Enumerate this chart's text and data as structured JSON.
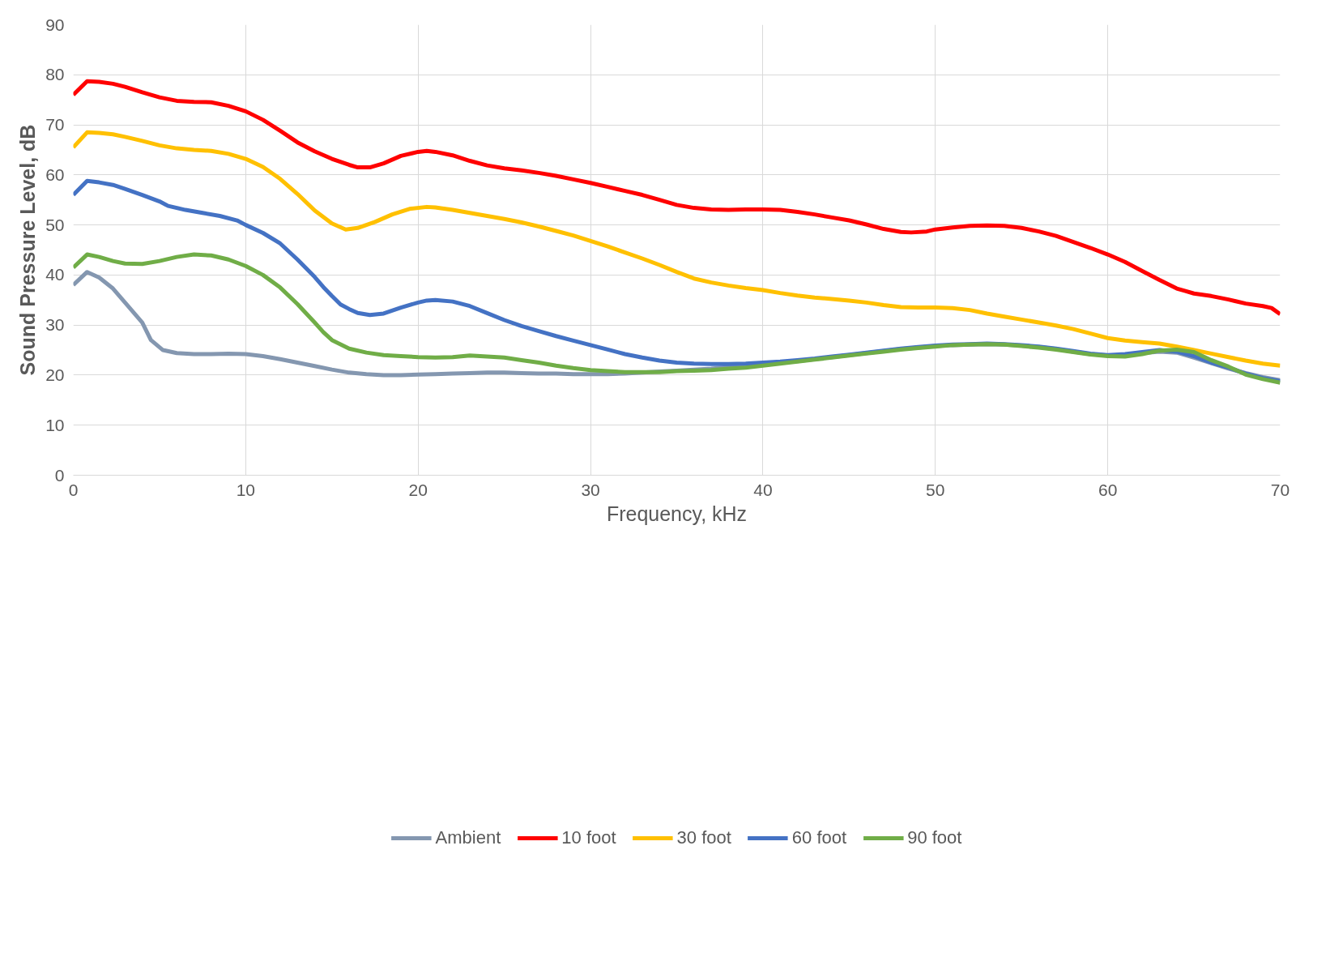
{
  "chart_data": {
    "type": "line",
    "xlabel": "Frequency, kHz",
    "ylabel": "Sound Pressure Level, dB",
    "xlim": [
      0,
      70
    ],
    "ylim": [
      0,
      90
    ],
    "xticks": [
      0,
      10,
      20,
      30,
      40,
      50,
      60,
      70
    ],
    "yticks": [
      0,
      10,
      20,
      30,
      40,
      50,
      60,
      70,
      80,
      90
    ],
    "grid": true,
    "legend": "bottom",
    "marker": "none",
    "line_style": "solid",
    "series": [
      {
        "name": "Ambient",
        "color": "#8497b0",
        "x": [
          0,
          0.8,
          1.5,
          2.3,
          3,
          4,
          4.5,
          5.2,
          6,
          7,
          8,
          9,
          10,
          11,
          12,
          13,
          14,
          15,
          16,
          17,
          18,
          19,
          20,
          21,
          22,
          23,
          24,
          25,
          26,
          27,
          28,
          29,
          30,
          31,
          32,
          33,
          34,
          35,
          36,
          37,
          38,
          39,
          40,
          41,
          42,
          43,
          44,
          45,
          46,
          47,
          48,
          49,
          50,
          51,
          52,
          53,
          54,
          55,
          56,
          57,
          58,
          59,
          60,
          61,
          62,
          63,
          64,
          65,
          66,
          67,
          68,
          69,
          70
        ],
        "values": [
          38,
          40.6,
          39.5,
          37.3,
          34.5,
          30.5,
          27,
          25,
          24.4,
          24.2,
          24.2,
          24.3,
          24.2,
          23.8,
          23.2,
          22.5,
          21.8,
          21.1,
          20.5,
          20.2,
          20,
          20,
          20.1,
          20.2,
          20.3,
          20.4,
          20.5,
          20.5,
          20.4,
          20.3,
          20.3,
          20.2,
          20.2,
          20.2,
          20.3,
          20.5,
          20.7,
          20.9,
          21.1,
          21.3,
          21.6,
          21.9,
          22.2,
          22.5,
          22.8,
          23.2,
          23.6,
          24,
          24.4,
          24.8,
          25.2,
          25.5,
          25.8,
          26,
          26.1,
          26.2,
          26.1,
          25.9,
          25.6,
          25.2,
          24.7,
          24.2,
          23.9,
          24,
          24.4,
          24.7,
          24.5,
          23.5,
          22.4,
          21.3,
          20.4,
          19.6,
          19
        ]
      },
      {
        "name": "10 foot",
        "color": "#ff0000",
        "x": [
          0,
          0.8,
          1.5,
          2.3,
          3,
          4,
          5,
          6,
          7,
          8,
          9,
          10,
          11,
          12,
          13,
          14,
          15,
          16,
          16.5,
          17.2,
          18,
          19,
          20,
          20.5,
          21,
          22,
          23,
          24,
          25,
          26,
          27,
          28,
          29,
          30,
          31,
          32,
          33,
          34,
          35,
          36,
          37,
          38,
          39,
          40,
          41,
          42,
          43,
          44,
          45,
          46,
          47,
          48,
          48.6,
          49.5,
          50,
          51,
          52,
          53,
          54,
          55,
          56,
          57,
          58,
          59,
          60,
          61,
          62,
          63,
          64,
          64.5,
          65,
          66,
          67,
          68,
          69,
          69.5,
          70
        ],
        "values": [
          76,
          78.7,
          78.6,
          78.2,
          77.6,
          76.5,
          75.5,
          74.8,
          74.6,
          74.5,
          73.8,
          72.7,
          71,
          68.8,
          66.5,
          64.7,
          63.2,
          62,
          61.5,
          61.5,
          62.3,
          63.8,
          64.6,
          64.8,
          64.6,
          63.9,
          62.8,
          61.9,
          61.3,
          60.9,
          60.4,
          59.8,
          59.1,
          58.4,
          57.6,
          56.8,
          56,
          55,
          54,
          53.4,
          53.1,
          53,
          53.1,
          53.1,
          53,
          52.6,
          52.1,
          51.5,
          50.9,
          50.1,
          49.2,
          48.6,
          48.5,
          48.7,
          49.1,
          49.5,
          49.8,
          49.9,
          49.8,
          49.4,
          48.7,
          47.8,
          46.6,
          45.4,
          44.1,
          42.6,
          40.8,
          39,
          37.3,
          36.8,
          36.3,
          35.8,
          35.1,
          34.3,
          33.8,
          33.4,
          32.2
        ]
      },
      {
        "name": "30 foot",
        "color": "#ffc000",
        "x": [
          0,
          0.8,
          1.5,
          2.3,
          3,
          4,
          5,
          6,
          7,
          8,
          9,
          10,
          11,
          12,
          13,
          14,
          15,
          15.8,
          16.5,
          17.5,
          18.5,
          19.5,
          20.5,
          21,
          22,
          23,
          24,
          25,
          26,
          27,
          28,
          29,
          30,
          31,
          32,
          33,
          34,
          35,
          36,
          37,
          38,
          39,
          40,
          41,
          42,
          43,
          44,
          45,
          46,
          47,
          48,
          49,
          50,
          51,
          52,
          53,
          54,
          55,
          56,
          57,
          58,
          59,
          60,
          61,
          62,
          63,
          64,
          65,
          66,
          67,
          68,
          69,
          70
        ],
        "values": [
          65.5,
          68.5,
          68.4,
          68.1,
          67.6,
          66.8,
          65.9,
          65.3,
          65,
          64.8,
          64.2,
          63.2,
          61.6,
          59.2,
          56.2,
          52.9,
          50.3,
          49.1,
          49.4,
          50.6,
          52.1,
          53.2,
          53.6,
          53.5,
          53,
          52.4,
          51.8,
          51.2,
          50.5,
          49.7,
          48.8,
          47.9,
          46.8,
          45.7,
          44.5,
          43.3,
          42,
          40.6,
          39.3,
          38.5,
          37.9,
          37.4,
          37,
          36.4,
          35.9,
          35.5,
          35.2,
          34.9,
          34.5,
          34,
          33.6,
          33.5,
          33.5,
          33.4,
          33,
          32.3,
          31.7,
          31.1,
          30.5,
          29.9,
          29.2,
          28.3,
          27.4,
          26.9,
          26.6,
          26.3,
          25.7,
          25,
          24.3,
          23.6,
          22.9,
          22.3,
          21.9
        ]
      },
      {
        "name": "60 foot",
        "color": "#4472c4",
        "x": [
          0,
          0.8,
          1.5,
          2.3,
          3,
          4,
          5,
          5.5,
          6.5,
          7.5,
          8.5,
          9.5,
          10,
          11,
          12,
          13,
          14,
          14.5,
          15,
          15.5,
          16,
          16.5,
          17.2,
          18,
          19,
          20,
          20.5,
          21,
          22,
          23,
          24,
          25,
          26,
          27,
          28,
          29,
          30,
          31,
          32,
          33,
          34,
          35,
          36,
          37,
          38,
          39,
          40,
          41,
          42,
          43,
          44,
          45,
          46,
          47,
          48,
          49,
          50,
          51,
          52,
          53,
          54,
          55,
          56,
          57,
          58,
          59,
          60,
          61,
          62,
          63,
          64,
          65,
          66,
          67,
          68,
          69,
          70
        ],
        "values": [
          56,
          58.8,
          58.5,
          58,
          57.2,
          56,
          54.7,
          53.8,
          53,
          52.4,
          51.8,
          50.9,
          50,
          48.4,
          46.3,
          43.1,
          39.6,
          37.6,
          35.8,
          34.1,
          33.2,
          32.4,
          32,
          32.3,
          33.5,
          34.5,
          34.9,
          35,
          34.7,
          33.8,
          32.4,
          31,
          29.8,
          28.8,
          27.8,
          26.9,
          26,
          25.1,
          24.2,
          23.5,
          22.9,
          22.5,
          22.3,
          22.2,
          22.2,
          22.3,
          22.5,
          22.7,
          23,
          23.3,
          23.7,
          24.1,
          24.5,
          24.9,
          25.3,
          25.6,
          25.9,
          26.1,
          26.2,
          26.3,
          26.2,
          26,
          25.7,
          25.3,
          24.8,
          24.3,
          24,
          24.2,
          24.6,
          25,
          24.7,
          23.8,
          22.5,
          21.5,
          20.3,
          19.4,
          18.8
        ]
      },
      {
        "name": "90 foot",
        "color": "#70ad47",
        "x": [
          0,
          0.8,
          1.5,
          2.3,
          3,
          4,
          5,
          6,
          7,
          8,
          9,
          10,
          11,
          12,
          13,
          14,
          14.5,
          15,
          16,
          17,
          18,
          19,
          20,
          21,
          22,
          23,
          24,
          25,
          26,
          27,
          28,
          29,
          30,
          31,
          32,
          33,
          34,
          35,
          36,
          37,
          38,
          39,
          40,
          41,
          42,
          43,
          44,
          45,
          46,
          47,
          48,
          49,
          50,
          51,
          52,
          53,
          54,
          55,
          56,
          57,
          58,
          59,
          60,
          61,
          62,
          63,
          64,
          65,
          66,
          67,
          68,
          69,
          70
        ],
        "values": [
          41.5,
          44.1,
          43.6,
          42.8,
          42.3,
          42.2,
          42.8,
          43.6,
          44.1,
          43.9,
          43.1,
          41.8,
          40,
          37.5,
          34.2,
          30.5,
          28.6,
          27,
          25.3,
          24.5,
          24,
          23.8,
          23.6,
          23.5,
          23.6,
          23.9,
          23.7,
          23.5,
          23,
          22.5,
          21.9,
          21.4,
          21,
          20.8,
          20.6,
          20.6,
          20.6,
          20.8,
          20.9,
          21,
          21.3,
          21.5,
          21.9,
          22.3,
          22.7,
          23.1,
          23.5,
          23.9,
          24.3,
          24.7,
          25.1,
          25.4,
          25.7,
          26,
          26.1,
          26.2,
          26.1,
          25.8,
          25.5,
          25.1,
          24.6,
          24.1,
          23.8,
          23.7,
          24.2,
          24.9,
          25.1,
          24.6,
          23,
          21.7,
          20.1,
          19.2,
          18.5
        ]
      }
    ]
  }
}
